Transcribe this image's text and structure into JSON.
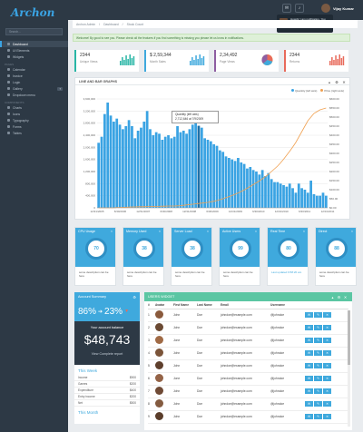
{
  "app": {
    "logo": "Archon"
  },
  "sidebar": {
    "search_placeholder": "Search...",
    "items_main": [
      {
        "label": "Dashboard",
        "active": true
      },
      {
        "label": "UI Elements",
        "count": ""
      },
      {
        "label": "Widgets"
      }
    ],
    "section1": "Pages",
    "items_pages": [
      {
        "label": "Calendar"
      },
      {
        "label": "Invoice"
      },
      {
        "label": "Login"
      },
      {
        "label": "Gallery",
        "count": "7"
      },
      {
        "label": "Dropdown menu",
        "count": ""
      }
    ],
    "section2": "Components",
    "items_comp": [
      {
        "label": "Charts"
      },
      {
        "label": "Icons"
      },
      {
        "label": "Typography"
      },
      {
        "label": "Forms",
        "count": ""
      },
      {
        "label": "Tables"
      }
    ]
  },
  "topbar": {
    "user_name": "Vijay Kumar",
    "notif": "Howdy! I am notification. You can hide me by clicking on it."
  },
  "breadcrumb": [
    "Archon Admin",
    "Dashboard",
    "Stock Count"
  ],
  "alert": "Welcome! By good to see you. Please check all the features if you find something is missing you please let us know in notifications.",
  "stats": [
    {
      "value": "2344",
      "label": "Unique Views",
      "color": "#29b6a6"
    },
    {
      "value": "$ 2,59,344",
      "label": "Month Sales",
      "color": "#3fa9dd"
    },
    {
      "value": "2,34,492",
      "label": "Page Views",
      "color": "#8e5ea2"
    },
    {
      "value": "2344",
      "label": "Returns",
      "color": "#e86a5b"
    }
  ],
  "chart_panel": {
    "title": "LINE AND BAR GRAPHS",
    "legend": [
      "Quantity (left axis)",
      "Price (right axis)"
    ]
  },
  "tooltip": {
    "title": "Quantity (left axis)",
    "value": "2,712,646 at 7/9/2009"
  },
  "chart_data": {
    "type": "bar",
    "series": [
      {
        "name": "Quantity (left axis)",
        "kind": "bar",
        "color": "#3aa3e3",
        "values": [
          2150000,
          2350000,
          3100000,
          3480000,
          3050000,
          2850000,
          2950000,
          2750000,
          2600000,
          2700000,
          2900000,
          2700000,
          2300000,
          2550000,
          2650000,
          2850000,
          3200000,
          2600000,
          2400000,
          2500000,
          2450000,
          2250000,
          2350000,
          2400000,
          2300000,
          2350000,
          2700000,
          2500000,
          2550000,
          2450000,
          2600000,
          2750000,
          2800000,
          2712646,
          2650000,
          2300000,
          2250000,
          2200000,
          2100000,
          2050000,
          1900000,
          1850000,
          1700000,
          1650000,
          1600000,
          1550000,
          1650000,
          1500000,
          1450000,
          1300000,
          1350000,
          1250000,
          1200000,
          1100000,
          1250000,
          1050000,
          1150000,
          950000,
          850000,
          850000,
          800000,
          750000,
          700000,
          800000,
          650000,
          500000,
          800000,
          650000,
          600000,
          500000,
          900000,
          450000,
          400000,
          400000,
          500000,
          400000
        ]
      },
      {
        "name": "Price (right axis)",
        "kind": "line",
        "color": "#f0a050",
        "values": [
          0,
          0,
          0,
          0,
          0,
          0,
          2,
          2,
          3,
          3,
          4,
          5,
          5,
          6,
          6,
          6,
          7,
          7,
          8,
          8,
          8,
          9,
          9,
          10,
          10,
          10,
          11,
          12,
          14,
          16,
          18,
          20,
          22,
          24,
          26,
          28,
          30,
          33,
          36,
          40,
          45,
          50,
          56,
          62,
          68,
          75,
          82,
          90,
          98,
          108,
          118,
          128,
          138,
          148,
          160,
          172,
          185,
          200,
          215,
          230,
          248,
          268,
          290,
          312,
          335,
          360,
          390,
          420,
          450,
          480,
          500,
          520,
          530,
          540,
          545,
          550
        ]
      }
    ],
    "x_ticks": [
      "12/31/2005",
      "6/30/2006",
      "12/31/2007",
      "6/30/2008",
      "12/31/2008",
      "6/30/2009",
      "12/31/2009",
      "6/30/2010",
      "12/31/2010",
      "6/30/2011",
      "12/31/2011"
    ],
    "y_left_ticks": [
      "0",
      "400,000",
      "800,000",
      "1,200,000",
      "1,600,000",
      "2,000,000",
      "2,400,000",
      "2,800,000",
      "3,200,000",
      "3,600,000"
    ],
    "y_right_ticks": [
      "$0.00",
      "$50.00",
      "$100.00",
      "$150.00",
      "$200.00",
      "$250.00",
      "$300.00",
      "$350.00",
      "$400.00",
      "$450.00",
      "$500.00",
      "$550.00",
      "$600.00"
    ],
    "ylim_left": [
      0,
      3600000
    ],
    "ylim_right": [
      0,
      600
    ],
    "legend_position": "top-right"
  },
  "gauges": [
    {
      "title": "CPU Usage",
      "value": "70",
      "desc": "some description can be here"
    },
    {
      "title": "Memory Used",
      "value": "38",
      "desc": "some description can be here"
    },
    {
      "title": "Server Load",
      "value": "38",
      "desc": "some description can be here"
    },
    {
      "title": "Active Users",
      "value": "99",
      "desc": "some description can be here"
    },
    {
      "title": "Real Time",
      "value": "80",
      "desc": "Last updated 9:58:20 am"
    },
    {
      "title": "Direct",
      "value": "88",
      "desc": "some description can be here"
    }
  ],
  "account": {
    "title": "Account Summary",
    "pct_up": "86%",
    "pct_down": "23%",
    "balance_label": "Your account balance",
    "balance": "$48,743",
    "report": "View Complete report",
    "week_title": "This Week",
    "week_rows": [
      {
        "k": "Income",
        "v": "$900"
      },
      {
        "k": "Games",
        "v": "$200"
      },
      {
        "k": "Expenditure",
        "v": "$400"
      },
      {
        "k": "Entry income",
        "v": "$200"
      },
      {
        "k": "Net",
        "v": "$500"
      }
    ],
    "month_title": "This Month"
  },
  "users_widget": {
    "title": "USERS WIDGET",
    "headers": [
      "#",
      "Avatar",
      "First Name",
      "Last Name",
      "Email",
      "Username",
      ""
    ],
    "rows": [
      {
        "n": "1",
        "first": "John",
        "last": "Doe",
        "email": "johndoe@example.com",
        "user": "@johndoe"
      },
      {
        "n": "2",
        "first": "John",
        "last": "Doe",
        "email": "johndoe@example.com",
        "user": "@johndoe"
      },
      {
        "n": "3",
        "first": "Jone",
        "last": "Doe",
        "email": "johndoe@example.com",
        "user": "@johndoe"
      },
      {
        "n": "4",
        "first": "John",
        "last": "Doe",
        "email": "johndoe@example.com",
        "user": "@johndoe"
      },
      {
        "n": "5",
        "first": "John",
        "last": "Doe",
        "email": "johndoe@example.com",
        "user": "@johndoe"
      },
      {
        "n": "6",
        "first": "Jone",
        "last": "Doe",
        "email": "johndoe@example.com",
        "user": "@johndoe"
      },
      {
        "n": "7",
        "first": "John",
        "last": "Doe",
        "email": "johndoe@example.com",
        "user": "@johndoe"
      },
      {
        "n": "8",
        "first": "John",
        "last": "Doe",
        "email": "johndoe@example.com",
        "user": "@johndoe"
      },
      {
        "n": "9",
        "first": "John",
        "last": "Doe",
        "email": "johndoe@example.com",
        "user": "@johndoe"
      }
    ]
  }
}
